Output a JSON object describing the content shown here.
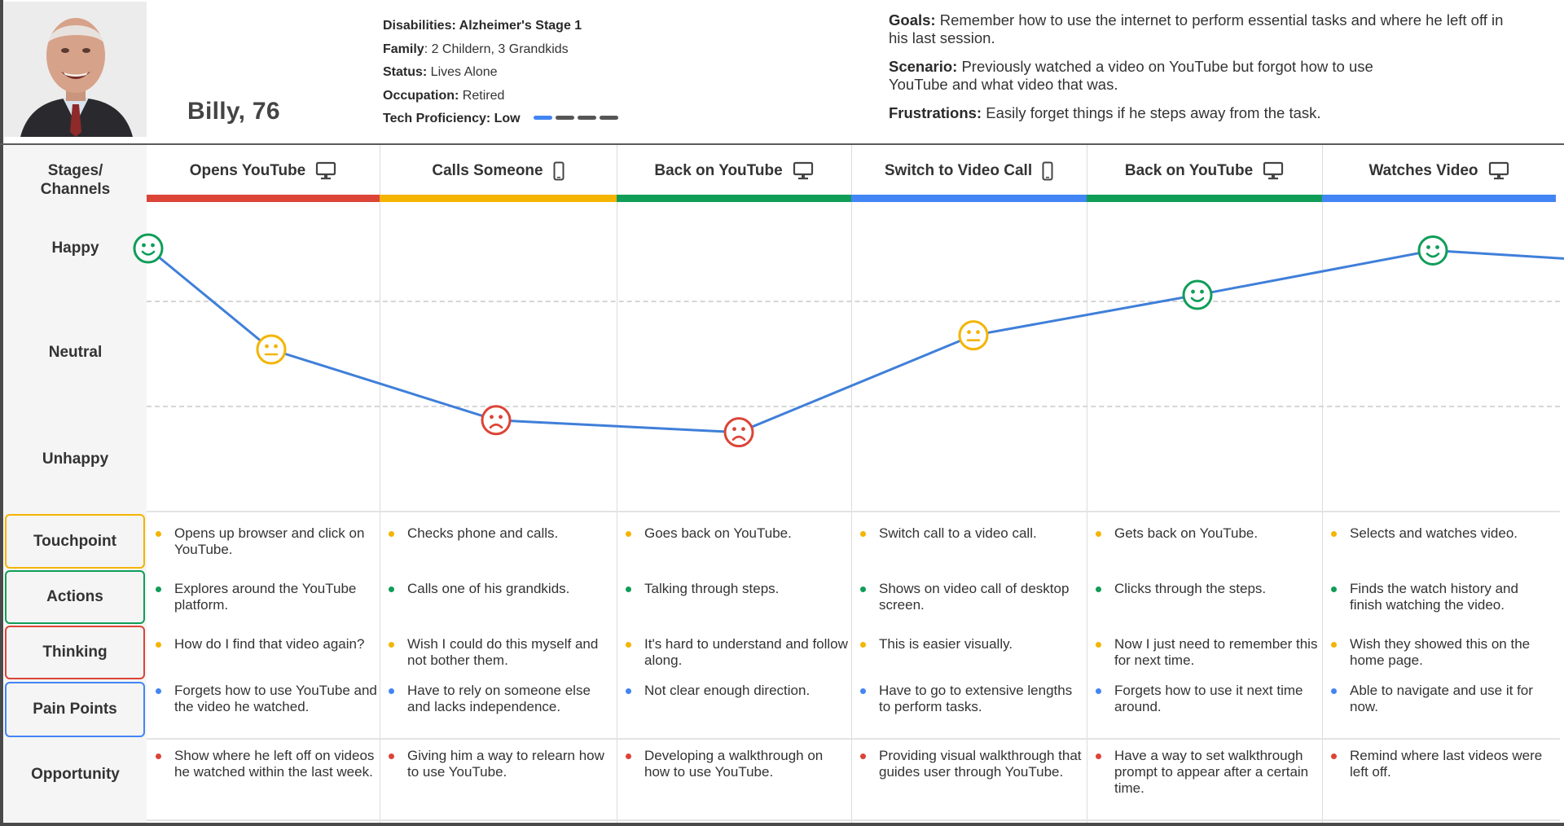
{
  "persona": {
    "name": "Billy, 76",
    "disabilities_label": "Disabilities: Alzheimer's Stage 1",
    "family_label": "Family",
    "family_value": ": 2 Childern, 3 Grandkids",
    "status_label": "Status:",
    "status_value": " Lives Alone",
    "occupation_label": "Occupation:",
    "occupation_value": " Retired",
    "tech_label": "Tech Proficiency:",
    "tech_value": " Low",
    "tech_level": {
      "filled": 1,
      "total": 4
    },
    "goals_label": "Goals:",
    "goals_text": " Remember how to use the internet to perform essential tasks and where he left off in his last session.",
    "scenario_label": "Scenario:",
    "scenario_text": " Previously watched a video on YouTube but forgot how to use YouTube and what video that was.",
    "frustrations_label": "Frustrations:",
    "frustrations_text": " Easily forget things if he steps away from the task."
  },
  "row_labels": {
    "stages": "Stages/\nChannels",
    "happy": "Happy",
    "neutral": "Neutral",
    "unhappy": "Unhappy",
    "touchpoint": "Touchpoint",
    "actions": "Actions",
    "thinking": "Thinking",
    "pain_points": "Pain Points",
    "opportunity": "Opportunity"
  },
  "colors": {
    "red": "#db4437",
    "yellow": "#f4b400",
    "green": "#0f9d58",
    "blue": "#4285f4",
    "line": "#3f7fd9",
    "dark": "#555555"
  },
  "stages": [
    {
      "title": "Opens YouTube",
      "icon": "desktop-icon",
      "bar_color": "#db4437",
      "touchpoint": "Opens up browser and click on YouTube.",
      "action": "Explores around the YouTube platform.",
      "thinking": "How do I find that video again?",
      "pain": "Forgets how to use YouTube and the video he watched.",
      "opportunity": "Show where he left off on videos he watched within the last week."
    },
    {
      "title": "Calls Someone",
      "icon": "phone-icon",
      "bar_color": "#f4b400",
      "touchpoint": "Checks phone and calls.",
      "action": "Calls one of his grandkids.",
      "thinking": "Wish I could do this myself and not bother them.",
      "pain": "Have to rely on someone else and lacks independence.",
      "opportunity": "Giving him a way to relearn how to use YouTube."
    },
    {
      "title": "Back on YouTube",
      "icon": "desktop-icon",
      "bar_color": "#0f9d58",
      "touchpoint": "Goes back on YouTube.",
      "action": "Talking through steps.",
      "thinking": "It's hard to understand and follow along.",
      "pain": "Not clear enough direction.",
      "opportunity": "Developing a walkthrough on how to use YouTube."
    },
    {
      "title": "Switch to Video Call",
      "icon": "phone-icon",
      "bar_color": "#4285f4",
      "touchpoint": "Switch call to a video call.",
      "action": "Shows on video call of desktop screen.",
      "thinking": "This is easier visually.",
      "pain": "Have to go to extensive lengths to perform tasks.",
      "opportunity": "Providing visual walkthrough that guides user through YouTube."
    },
    {
      "title": "Back on YouTube",
      "icon": "desktop-icon",
      "bar_color": "#0f9d58",
      "touchpoint": "Gets back on YouTube.",
      "action": "Clicks through the steps.",
      "thinking": "Now I just need to remember this for next time.",
      "pain": "Forgets how to use it next time around.",
      "opportunity": "Have a way to set walkthrough prompt to appear after a certain time."
    },
    {
      "title": "Watches Video",
      "icon": "desktop-icon",
      "bar_color": "#4285f4",
      "touchpoint": "Selects and watches video.",
      "action": "Finds the watch history and finish watching the video.",
      "thinking": "Wish they showed this on the home page.",
      "pain": "Able to navigate and use it for now.",
      "opportunity": "Remind where last videos were left off."
    }
  ],
  "emotion_points": [
    {
      "mood": "happy",
      "level": 1.0,
      "color": "#0f9d58"
    },
    {
      "mood": "neutral",
      "level": 0.5,
      "color": "#f4b400"
    },
    {
      "mood": "unhappy",
      "level": 0.15,
      "color": "#db4437"
    },
    {
      "mood": "unhappy",
      "level": 0.09,
      "color": "#db4437"
    },
    {
      "mood": "neutral",
      "level": 0.57,
      "color": "#f4b400"
    },
    {
      "mood": "happy",
      "level": 0.77,
      "color": "#0f9d58"
    },
    {
      "mood": "happy",
      "level": 0.99,
      "color": "#0f9d58"
    }
  ]
}
